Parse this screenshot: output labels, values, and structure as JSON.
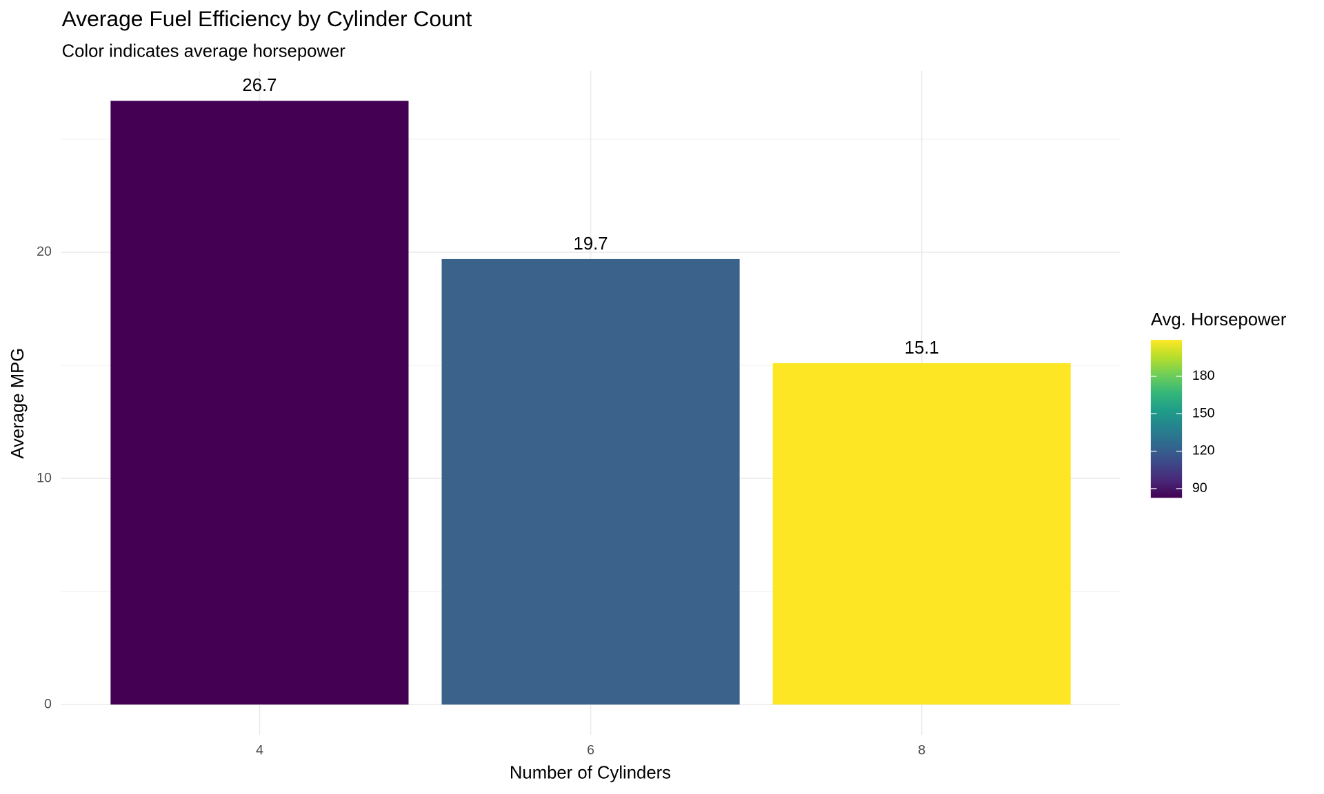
{
  "chart_data": {
    "type": "bar",
    "title": "Average Fuel Efficiency by Cylinder Count",
    "subtitle": "Color indicates average horsepower",
    "x_label": "Number of Cylinders",
    "y_label": "Average MPG",
    "categories": [
      "4",
      "6",
      "8"
    ],
    "values": [
      26.7,
      19.7,
      15.1
    ],
    "value_labels": [
      "26.7",
      "19.7",
      "15.1"
    ],
    "fill_values": [
      82.6,
      122.3,
      209.2
    ],
    "colors": [
      "#440154",
      "#3a628a",
      "#fde725"
    ],
    "ylim": [
      -1.335,
      28.035
    ],
    "yticks": [
      0,
      10,
      20
    ],
    "y_minor_ticks": [
      5,
      15,
      25
    ],
    "grid": true,
    "colorbar": {
      "title": "Avg. Horsepower",
      "lim": [
        82.6,
        209.2
      ],
      "ticks": [
        90,
        120,
        150,
        180
      ],
      "colors": [
        "#440154",
        "#482878",
        "#3e4989",
        "#31688e",
        "#26828e",
        "#1f9e89",
        "#35b779",
        "#6ece58",
        "#b5de2b",
        "#fde725"
      ]
    }
  }
}
